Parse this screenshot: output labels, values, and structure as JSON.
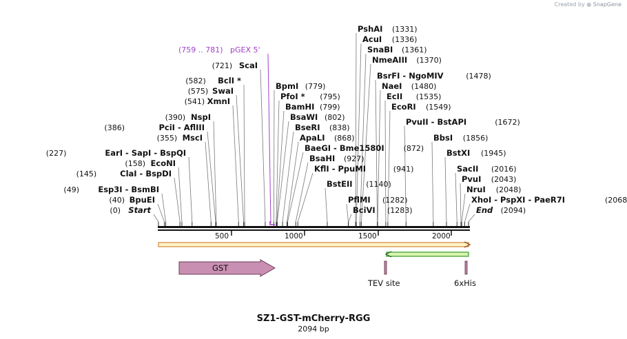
{
  "credit": {
    "prefix": "Created by",
    "brand": "SnapGene"
  },
  "map": {
    "name": "SZ1-GST-mCherry-RGG",
    "length_label": "2094 bp",
    "length": 2094
  },
  "ticks": [
    "500",
    "1000",
    "1500",
    "2000"
  ],
  "primer": {
    "label": "pGEX 5'",
    "range": "(759 .. 781)"
  },
  "sites": [
    {
      "pos": "(1331)",
      "names": [
        "PshAI"
      ]
    },
    {
      "pos": "(1336)",
      "names": [
        "AcuI"
      ]
    },
    {
      "pos": "(1361)",
      "names": [
        "SnaBI"
      ]
    },
    {
      "pos": "(1370)",
      "names": [
        "NmeAIII"
      ]
    },
    {
      "pos": "(1478)",
      "names": [
        "BsrFI",
        "NgoMIV"
      ]
    },
    {
      "pos": "(1480)",
      "names": [
        "NaeI"
      ]
    },
    {
      "pos": "(1535)",
      "names": [
        "EcII"
      ]
    },
    {
      "pos": "(1549)",
      "names": [
        "EcoRI"
      ]
    },
    {
      "pos": "(1672)",
      "names": [
        "PvuII",
        "BstAPI"
      ]
    },
    {
      "pos": "(1856)",
      "names": [
        "BbsI"
      ]
    },
    {
      "pos": "(1945)",
      "names": [
        "BstXI"
      ]
    },
    {
      "pos": "(2016)",
      "names": [
        "SacII"
      ]
    },
    {
      "pos": "(2043)",
      "names": [
        "PvuI"
      ]
    },
    {
      "pos": "(2048)",
      "names": [
        "NruI"
      ]
    },
    {
      "pos": "(2068)",
      "names": [
        "XhoI",
        "PspXI",
        "PaeR7I"
      ]
    },
    {
      "pos": "(2094)",
      "names": [
        "End"
      ]
    },
    {
      "pos": "(721)",
      "names": [
        "ScaI"
      ]
    },
    {
      "pos": "(582)",
      "names": [
        "BclI *"
      ]
    },
    {
      "pos": "(575)",
      "names": [
        "SwaI"
      ]
    },
    {
      "pos": "(541)",
      "names": [
        "XmnI"
      ]
    },
    {
      "pos": "(390)",
      "names": [
        "NspI"
      ]
    },
    {
      "pos": "(386)",
      "names": [
        "PciI",
        "AflIII"
      ]
    },
    {
      "pos": "(355)",
      "names": [
        "MscI"
      ]
    },
    {
      "pos": "(227)",
      "names": [
        "EarI",
        "SapI",
        "BspQI"
      ]
    },
    {
      "pos": "(158)",
      "names": [
        "EcoNI"
      ]
    },
    {
      "pos": "(145)",
      "names": [
        "ClaI",
        "BspDI"
      ]
    },
    {
      "pos": "(49)",
      "names": [
        "Esp3I",
        "BsmBI"
      ]
    },
    {
      "pos": "(40)",
      "names": [
        "BpuEI"
      ]
    },
    {
      "pos": "(0)",
      "names": [
        "Start"
      ]
    },
    {
      "pos": "(779)",
      "names": [
        "BpmI"
      ]
    },
    {
      "pos": "(795)",
      "names": [
        "PfoI *"
      ]
    },
    {
      "pos": "(799)",
      "names": [
        "BamHI"
      ]
    },
    {
      "pos": "(802)",
      "names": [
        "BsaWI"
      ]
    },
    {
      "pos": "(838)",
      "names": [
        "BseRI"
      ]
    },
    {
      "pos": "(868)",
      "names": [
        "ApaLI"
      ]
    },
    {
      "pos": "(872)",
      "names": [
        "BaeGI",
        "Bme1580I"
      ]
    },
    {
      "pos": "(927)",
      "names": [
        "BsaHI"
      ]
    },
    {
      "pos": "(941)",
      "names": [
        "KflI",
        "PpuMI"
      ]
    },
    {
      "pos": "(1140)",
      "names": [
        "BstEII"
      ]
    },
    {
      "pos": "(1282)",
      "names": [
        "PflMI"
      ]
    },
    {
      "pos": "(1283)",
      "names": [
        "BciVI"
      ]
    }
  ],
  "features": [
    {
      "label": "GST"
    },
    {
      "label": "TEV site"
    },
    {
      "label": "6xHis"
    }
  ],
  "colors": {
    "gst": "#c98fb2",
    "mcherry_fill": "#fff3c8",
    "mcherry_edge": "#d08a3a",
    "rgg_fill": "#d8f5b0",
    "rgg_edge": "#3a9a2a",
    "primer": "#a040c8",
    "tag": "#c08aa8"
  }
}
